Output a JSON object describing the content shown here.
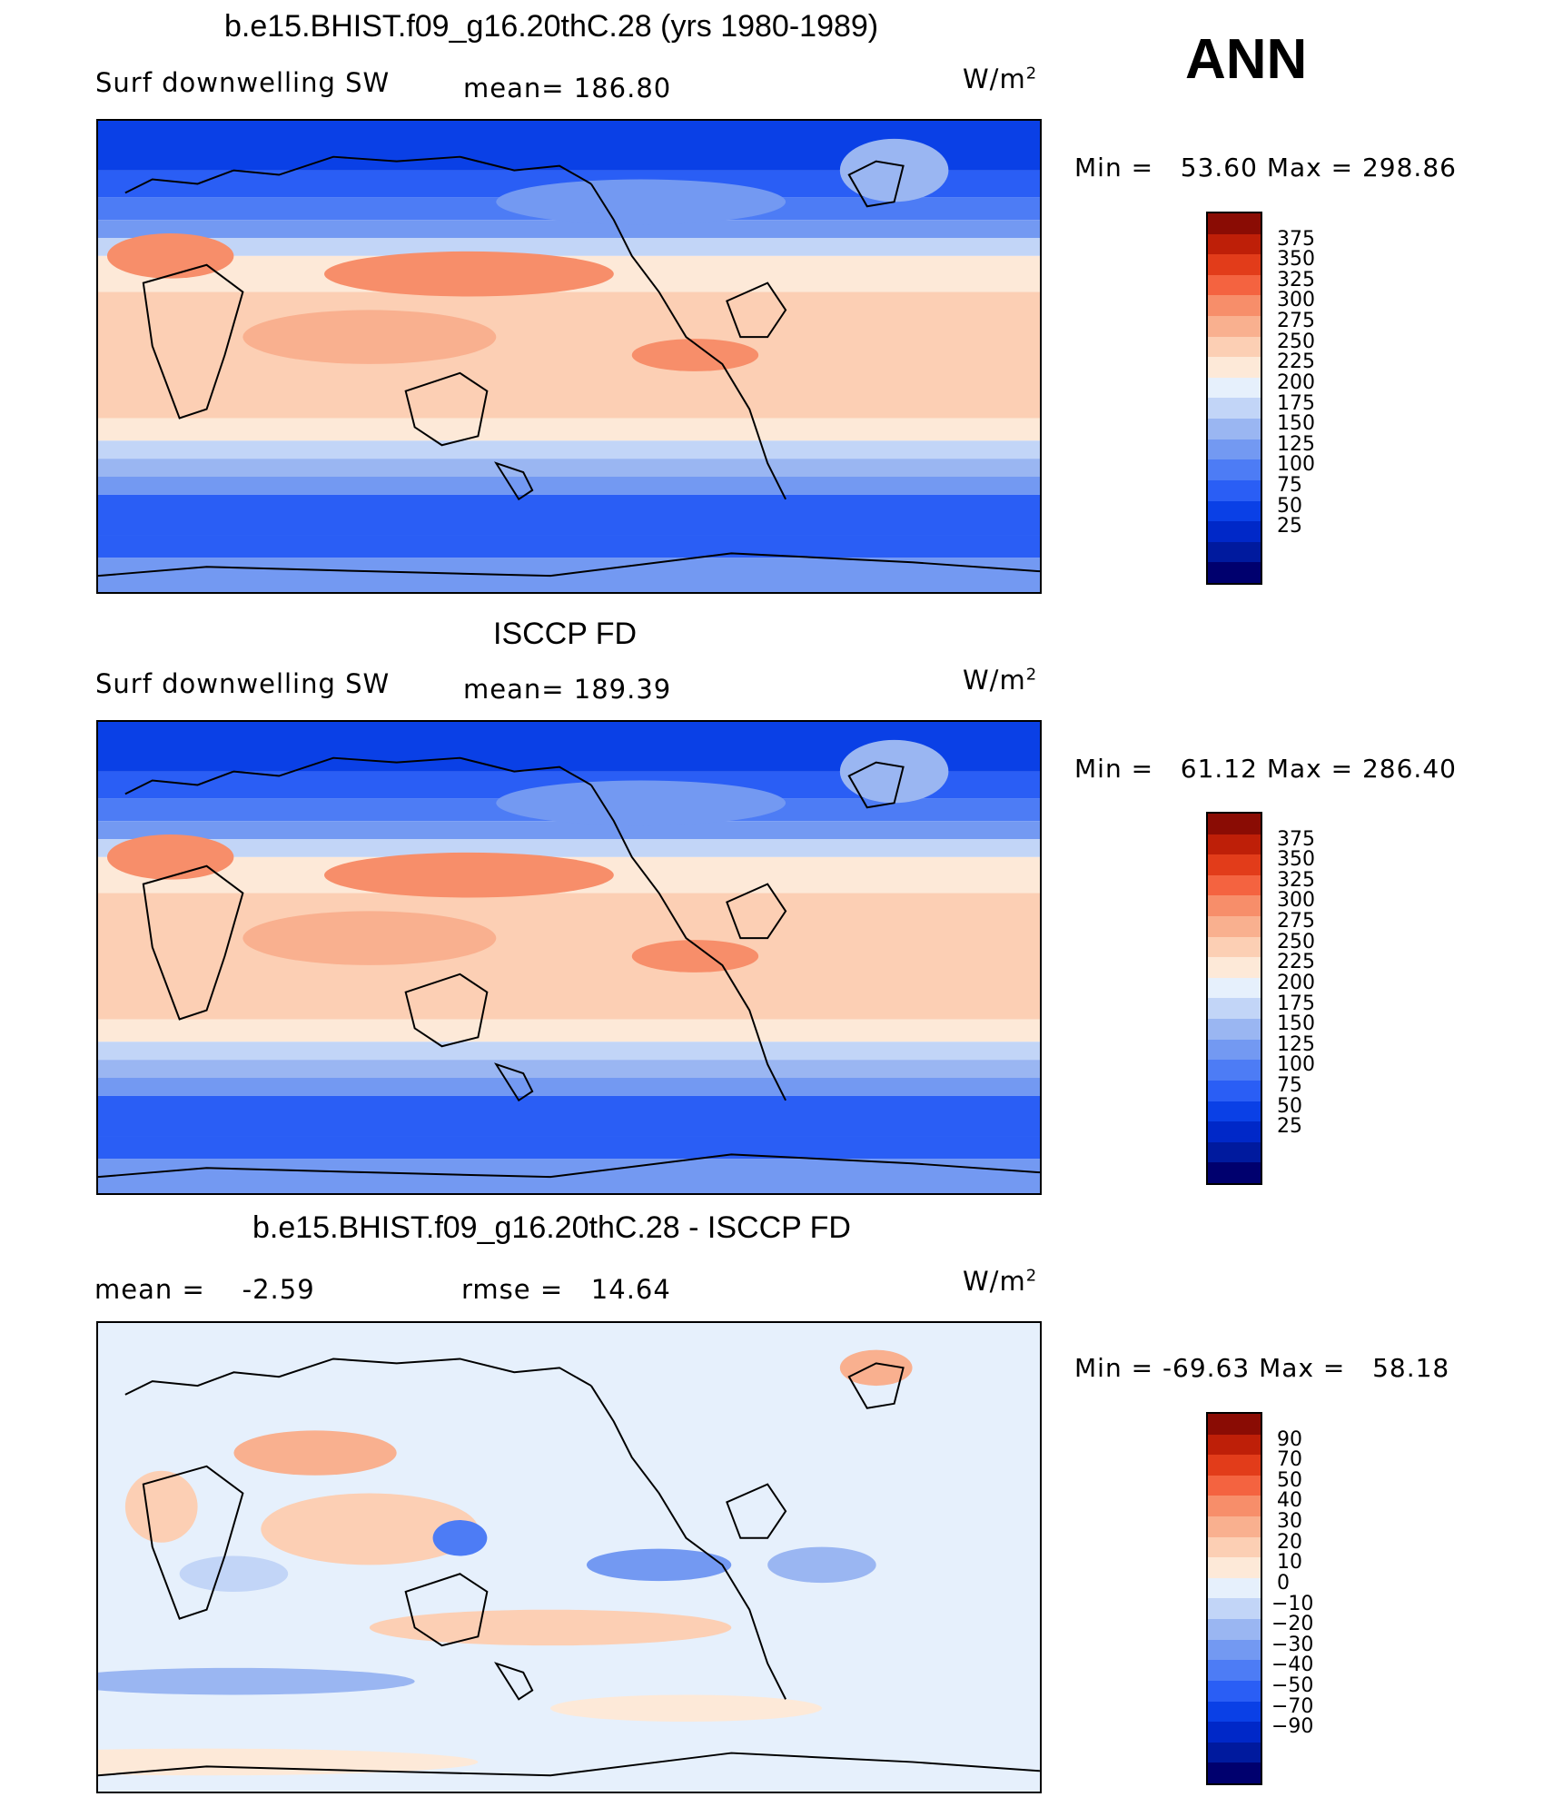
{
  "season": "ANN",
  "panels": [
    {
      "id": "model",
      "title": "b.e15.BHIST.f09_g16.20thC.28 (yrs 1980-1989)",
      "left_label": "Surf downwelling SW",
      "stat1_label": "mean=",
      "stat1_value": "186.80",
      "stat2_label": "",
      "stat2_value": "",
      "units_base": "W/m",
      "units_exp": "2",
      "min_label": "Min =",
      "min_value": "53.60",
      "max_label": "Max =",
      "max_value": "298.86",
      "palette": [
        "#00006e",
        "#001a9e",
        "#0028c8",
        "#0a40e6",
        "#2a5ef5",
        "#4d7cf5",
        "#7399f2",
        "#9ab6f2",
        "#c2d5f7",
        "#e6f0fc",
        "#fde9d8",
        "#fccfb4",
        "#f9b08f",
        "#f78e6a",
        "#f46340",
        "#e23c1a",
        "#be1f08",
        "#8a0c04"
      ],
      "ticks": [
        "375",
        "350",
        "325",
        "300",
        "275",
        "250",
        "225",
        "200",
        "175",
        "150",
        "125",
        "100",
        "75",
        "50",
        "25"
      ]
    },
    {
      "id": "obs",
      "title": "ISCCP FD",
      "left_label": "Surf downwelling SW",
      "stat1_label": "mean=",
      "stat1_value": "189.39",
      "stat2_label": "",
      "stat2_value": "",
      "units_base": "W/m",
      "units_exp": "2",
      "min_label": "Min =",
      "min_value": "61.12",
      "max_label": "Max =",
      "max_value": "286.40",
      "palette": [
        "#00006e",
        "#001a9e",
        "#0028c8",
        "#0a40e6",
        "#2a5ef5",
        "#4d7cf5",
        "#7399f2",
        "#9ab6f2",
        "#c2d5f7",
        "#e6f0fc",
        "#fde9d8",
        "#fccfb4",
        "#f9b08f",
        "#f78e6a",
        "#f46340",
        "#e23c1a",
        "#be1f08",
        "#8a0c04"
      ],
      "ticks": [
        "375",
        "350",
        "325",
        "300",
        "275",
        "250",
        "225",
        "200",
        "175",
        "150",
        "125",
        "100",
        "75",
        "50",
        "25"
      ]
    },
    {
      "id": "diff",
      "title": "b.e15.BHIST.f09_g16.20thC.28 - ISCCP FD",
      "left_label": "mean =",
      "stat1_label": "",
      "stat1_value": "-2.59",
      "stat2_label": "rmse =",
      "stat2_value": "14.64",
      "units_base": "W/m",
      "units_exp": "2",
      "min_label": "Min =",
      "min_value": "-69.63",
      "max_label": "Max =",
      "max_value": "58.18",
      "palette": [
        "#00006e",
        "#001a9e",
        "#0028c8",
        "#0a40e6",
        "#2a5ef5",
        "#4d7cf5",
        "#7399f2",
        "#9ab6f2",
        "#c2d5f7",
        "#e6f0fc",
        "#fde9d8",
        "#fccfb4",
        "#f9b08f",
        "#f78e6a",
        "#f46340",
        "#e23c1a",
        "#be1f08",
        "#8a0c04"
      ],
      "ticks": [
        "90",
        "70",
        "50",
        "40",
        "30",
        "20",
        "10",
        "0",
        "−10",
        "−20",
        "−30",
        "−40",
        "−50",
        "−70",
        "−90"
      ]
    }
  ]
}
